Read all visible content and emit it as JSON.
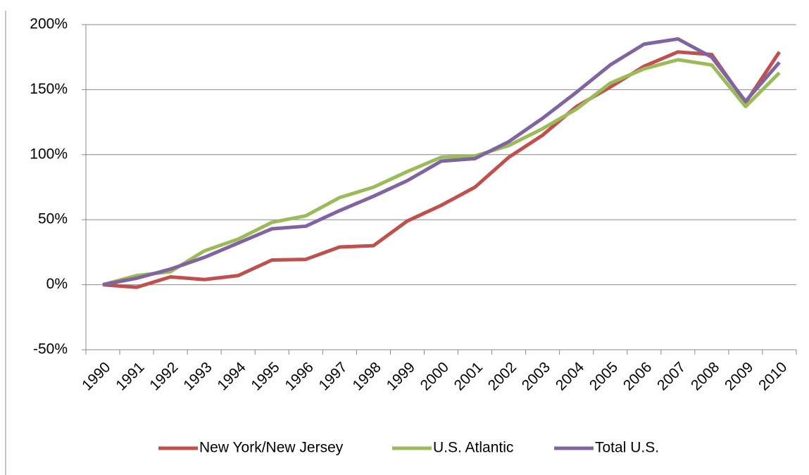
{
  "chart_data": {
    "type": "line",
    "categories": [
      "1990",
      "1991",
      "1992",
      "1993",
      "1994",
      "1995",
      "1996",
      "1997",
      "1998",
      "1999",
      "2000",
      "2001",
      "2002",
      "2003",
      "2004",
      "2005",
      "2006",
      "2007",
      "2008",
      "2009",
      "2010"
    ],
    "series": [
      {
        "name": "New York/New Jersey",
        "color": "#c0504d",
        "values": [
          0,
          -2,
          6,
          4,
          7,
          19,
          19.5,
          29,
          30,
          49,
          61,
          75,
          98,
          115,
          137,
          152,
          168,
          179,
          177,
          140,
          179
        ]
      },
      {
        "name": "U.S. Atlantic",
        "color": "#9bbb59",
        "values": [
          0,
          7,
          10,
          26,
          35,
          48,
          53,
          67,
          75,
          87,
          98,
          99,
          107,
          120,
          135,
          155,
          166,
          173,
          169,
          137,
          163
        ]
      },
      {
        "name": "Total U.S.",
        "color": "#8064a2",
        "values": [
          0,
          5,
          12,
          21,
          32,
          43,
          45,
          57,
          68,
          80,
          95,
          97,
          110,
          128,
          148,
          169,
          185,
          189,
          175,
          141,
          171
        ]
      }
    ],
    "ylim": [
      -50,
      200
    ],
    "yticks": [
      {
        "value": -50,
        "label": "-50%"
      },
      {
        "value": 0,
        "label": "0%"
      },
      {
        "value": 50,
        "label": "50%"
      },
      {
        "value": 100,
        "label": "100%"
      },
      {
        "value": 150,
        "label": "150%"
      },
      {
        "value": 200,
        "label": "200%"
      }
    ],
    "grid": true,
    "legend": "bottom"
  }
}
